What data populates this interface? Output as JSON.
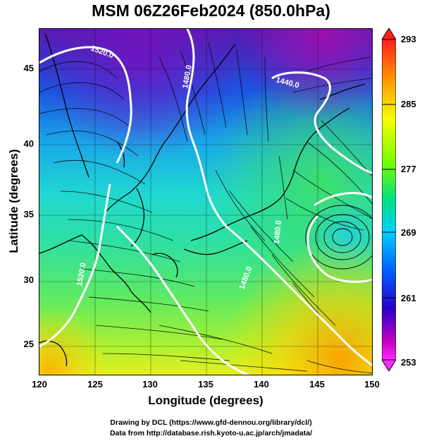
{
  "title": "MSM 06Z26Feb2024 (850.0hPa)",
  "x_axis": {
    "label": "Longitude (degrees)",
    "ticks": [
      "120",
      "125",
      "130",
      "135",
      "140",
      "145",
      "150"
    ]
  },
  "y_axis": {
    "label": "Latitude (degrees)",
    "ticks": [
      "25",
      "30",
      "35",
      "40",
      "45"
    ]
  },
  "map": {
    "lon_range": [
      120,
      150
    ],
    "lat_range": [
      22.5,
      48
    ],
    "field": "temperature (colour shading), geopotential height (white contours), wind (streamlines)",
    "contour_labels": [
      "1520.0",
      "1480.0",
      "1440.0",
      "1480.0",
      "1520.0",
      "1480.0"
    ],
    "low_pressure_center": {
      "lon": 147.5,
      "lat": 33.5
    }
  },
  "colorbar": {
    "labels": [
      "293",
      "285",
      "277",
      "269",
      "261",
      "253"
    ],
    "colors": [
      "#ff2020",
      "#ff9a00",
      "#f5ff00",
      "#7cfc00",
      "#00e080",
      "#00d0ff",
      "#0060ff",
      "#2a00c8",
      "#c000c0",
      "#ff2aff"
    ]
  },
  "footer": {
    "line1": "Drawing by DCL (https://www.gfd-dennou.org/library/dcl/)",
    "line2": "Data from http://database.rish.kyoto-u.ac.jp/arch/jmadata/"
  }
}
